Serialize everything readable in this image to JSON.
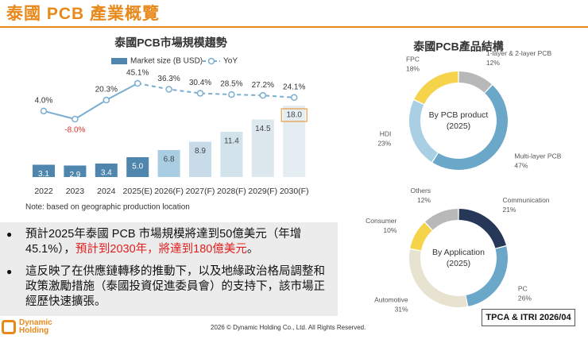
{
  "header": {
    "title": "泰國 PCB 產業概覽"
  },
  "chart_data": [
    {
      "type": "combo",
      "title": "泰國PCB市場規模趨勢",
      "categories": [
        "2022",
        "2023",
        "2024",
        "2025(E)",
        "2026(F)",
        "2027(F)",
        "2028(F)",
        "2029(F)",
        "2030(F)"
      ],
      "series": [
        {
          "name": "Market size (B USD)",
          "type": "bar",
          "color": "#4f86ad",
          "colors": [
            "#4f86ad",
            "#4f86ad",
            "#4f86ad",
            "#4f86ad",
            "#a9cde3",
            "#c7dce8",
            "#d3e3eb",
            "#dce8ee",
            "#e4edf2"
          ],
          "values": [
            3.1,
            2.9,
            3.4,
            5.0,
            6.8,
            8.9,
            11.4,
            14.5,
            18.0
          ],
          "value_labels": [
            "3.1",
            "2.9",
            "3.4",
            "5.0",
            "6.8",
            "8.9",
            "11.4",
            "14.5",
            "18.0"
          ]
        },
        {
          "name": "YoY",
          "type": "line",
          "color": "#7aaed0",
          "values": [
            4.0,
            -8.0,
            20.3,
            45.1,
            36.3,
            30.4,
            28.5,
            27.2,
            24.1
          ],
          "value_labels": [
            "4.0%",
            "-8.0%",
            "20.3%",
            "45.1%",
            "36.3%",
            "30.4%",
            "28.5%",
            "27.2%",
            "24.1%"
          ]
        }
      ],
      "note": "Note: based on geographic production location"
    },
    {
      "type": "donut",
      "title": "泰國PCB產品結構",
      "center_text": [
        "By PCB product",
        "(2025)"
      ],
      "categories": [
        "1-layer & 2-layer PCB",
        "Multi-layer PCB",
        "HDI",
        "FPC"
      ],
      "values": [
        12,
        47,
        23,
        18
      ],
      "value_labels": [
        "12%",
        "47%",
        "23%",
        "18%"
      ],
      "colors": [
        "#b8b8b8",
        "#6aa7c9",
        "#a8cfe3",
        "#f5d34a"
      ]
    },
    {
      "type": "donut",
      "center_text": [
        "By Application",
        "(2025)"
      ],
      "categories": [
        "Communication",
        "PC",
        "Automotive",
        "Consumer",
        "Others"
      ],
      "values": [
        21,
        26,
        31,
        10,
        12
      ],
      "value_labels": [
        "21%",
        "26%",
        "31%",
        "10%",
        "12%"
      ],
      "colors": [
        "#263758",
        "#6aa7c9",
        "#e8e3d0",
        "#f5d34a",
        "#b8b8b8"
      ]
    }
  ],
  "bullets": [
    {
      "text": "預計2025年泰國 PCB 市場規模將達到50億美元（年增45.1%），",
      "highlight": "預計到2030年，將達到180億美元",
      "end": "。"
    },
    {
      "text": "這反映了在供應鏈轉移的推動下，以及地緣政治格局調整和政策激勵措施（泰國投資促進委員會）的支持下，該市場正經歷快速擴張。"
    }
  ],
  "logo": "Dynamic Holding",
  "footer": "2026 © Dynamic Holding Co., Ltd. All Rights Reserved.",
  "source": "TPCA & ITRI 2026/04"
}
